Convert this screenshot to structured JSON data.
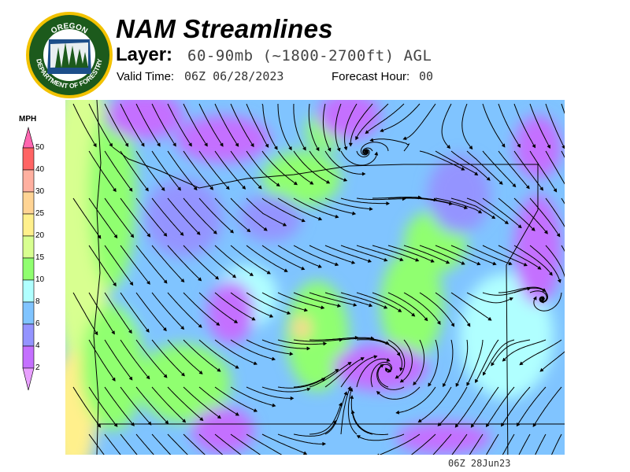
{
  "logo": {
    "top_text": "OREGON",
    "bottom_text": "DEPARTMENT OF FORESTRY"
  },
  "header": {
    "title": "NAM Streamlines",
    "layer_label": "Layer:",
    "layer_value": "60-90mb (~1800-2700ft) AGL",
    "valid_label": "Valid Time:",
    "valid_value": "06Z 06/28/2023",
    "forecast_label": "Forecast Hour:",
    "forecast_value": "00"
  },
  "colorbar": {
    "unit": "MPH",
    "ticks": [
      "50",
      "40",
      "30",
      "25",
      "20",
      "15",
      "10",
      "8",
      "6",
      "4",
      "2"
    ],
    "colors": [
      "#ff66b0",
      "#ff6464",
      "#ffb0a0",
      "#ffd494",
      "#fff08c",
      "#d8ff90",
      "#90ff70",
      "#b0ffff",
      "#80c4ff",
      "#9494ff",
      "#c470ff",
      "#e8a0ff"
    ]
  },
  "map": {
    "field": "wind speed streamlines"
  },
  "footer": {
    "time": "06Z 28Jun23"
  }
}
